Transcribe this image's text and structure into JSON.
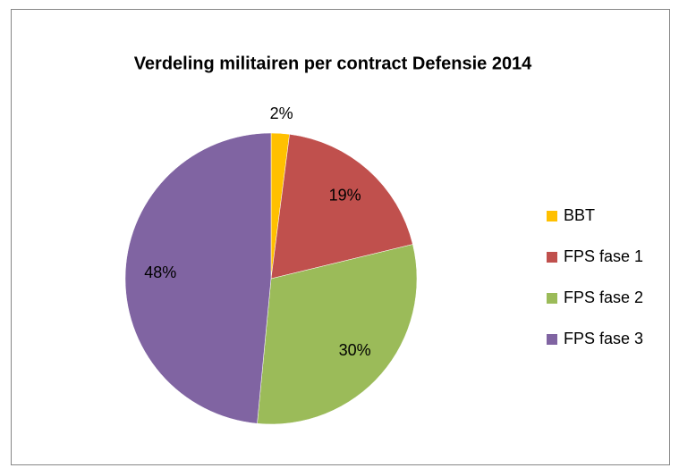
{
  "chart_data": {
    "type": "pie",
    "title": "Verdeling militairen per contract Defensie 2014",
    "categories": [
      "BBT",
      "FPS fase 1",
      "FPS fase 2",
      "FPS fase 3"
    ],
    "values": [
      2,
      19,
      30,
      48
    ],
    "value_labels": [
      "2%",
      "19%",
      "30%",
      "48%"
    ],
    "colors": [
      "#ffc000",
      "#c0504d",
      "#9bbb59",
      "#8064a2"
    ],
    "legend": "right"
  }
}
